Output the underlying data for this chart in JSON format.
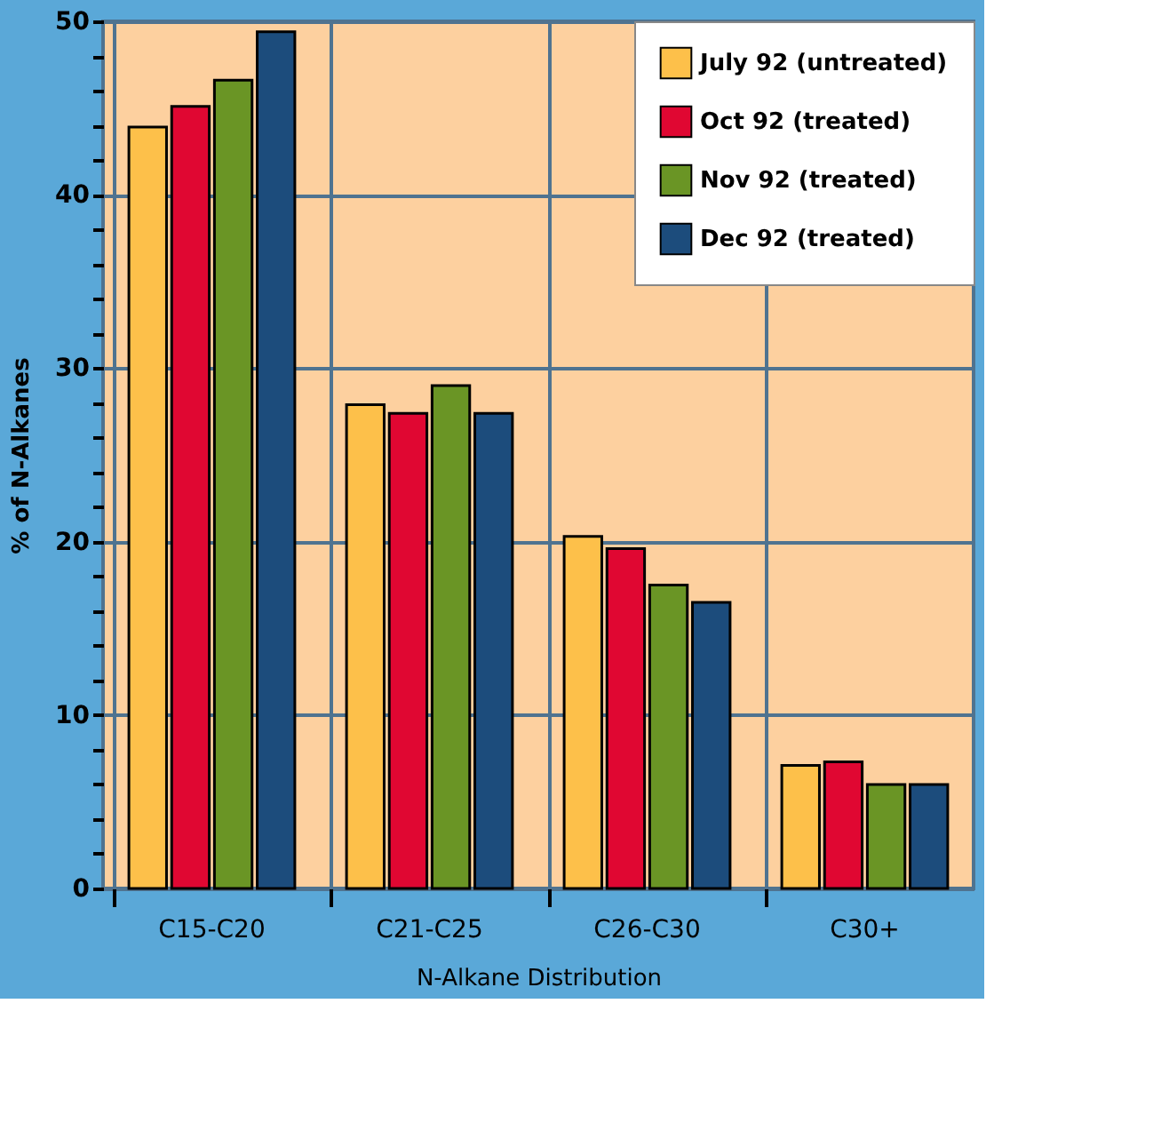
{
  "chart_data": {
    "type": "bar",
    "xlabel": "N-Alkane Distribution",
    "ylabel": "% of N-Alkanes",
    "categories": [
      "C15-C20",
      "C21-C25",
      "C26-C30",
      "C30+"
    ],
    "series": [
      {
        "name": "July 92 (untreated)",
        "color": "#fdc04a",
        "values": [
          43.9,
          27.9,
          20.3,
          7.1
        ]
      },
      {
        "name": "Oct 92 (treated)",
        "color": "#e00732",
        "values": [
          45.1,
          27.4,
          19.6,
          7.3
        ]
      },
      {
        "name": "Nov 92 (treated)",
        "color": "#6a9525",
        "values": [
          46.6,
          29.0,
          17.5,
          6.0
        ]
      },
      {
        "name": "Dec 92 (treated)",
        "color": "#1c4c7c",
        "values": [
          49.4,
          27.4,
          16.5,
          6.0
        ]
      }
    ],
    "ylim": [
      0,
      50
    ],
    "yticks": [
      0,
      {
        "value": 2,
        "label": null
      },
      {
        "value": 4,
        "label": null
      },
      {
        "value": 6,
        "label": null
      },
      {
        "value": 8,
        "label": null
      },
      10,
      {
        "value": 12,
        "label": null
      },
      {
        "value": 14,
        "label": null
      },
      {
        "value": 16,
        "label": null
      },
      {
        "value": 18,
        "label": null
      },
      20,
      {
        "value": 22,
        "label": null
      },
      {
        "value": 24,
        "label": null
      },
      {
        "value": 26,
        "label": null
      },
      {
        "value": 28,
        "label": null
      },
      30,
      {
        "value": 32,
        "label": null
      },
      {
        "value": 34,
        "label": null
      },
      {
        "value": 36,
        "label": null
      },
      {
        "value": 38,
        "label": null
      },
      40,
      {
        "value": 42,
        "label": null
      },
      {
        "value": 44,
        "label": null
      },
      {
        "value": 46,
        "label": null
      },
      {
        "value": 48,
        "label": null
      },
      50
    ],
    "grid": true,
    "legend": "top right"
  }
}
